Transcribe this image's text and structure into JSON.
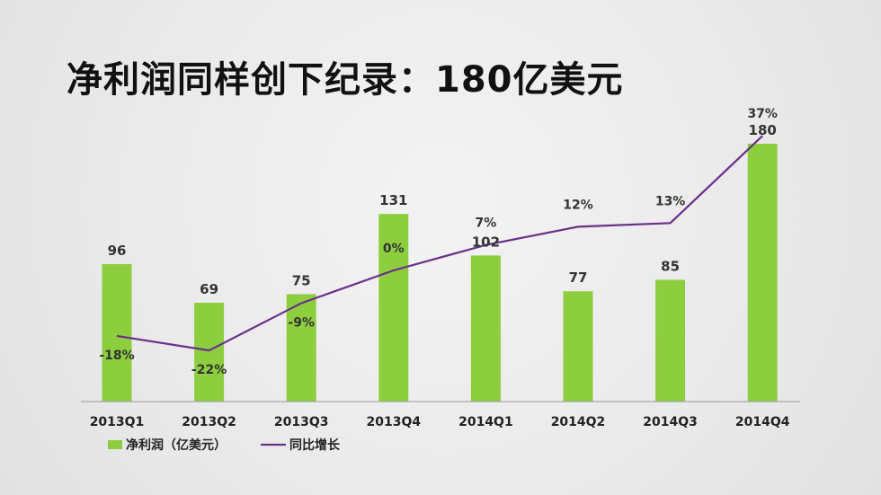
{
  "title": "净利润同样创下纪录：180亿美元",
  "chart_data": {
    "type": "bar",
    "categories": [
      "2013Q1",
      "2013Q2",
      "2013Q3",
      "2013Q4",
      "2014Q1",
      "2014Q2",
      "2014Q3",
      "2014Q4"
    ],
    "series": [
      {
        "name": "净利润（亿美元）",
        "type": "bar",
        "values": [
          96,
          69,
          75,
          131,
          102,
          77,
          85,
          180
        ],
        "color": "#8dce3f"
      },
      {
        "name": "同比增长",
        "type": "line",
        "values": [
          -18,
          -22,
          -9,
          0,
          7,
          12,
          13,
          37
        ],
        "labels": [
          "-18%",
          "-22%",
          "-9%",
          "0%",
          "7%",
          "12%",
          "13%",
          "37%"
        ],
        "color": "#6a2f8a"
      }
    ],
    "legend": "bottom-left",
    "grid": false
  }
}
